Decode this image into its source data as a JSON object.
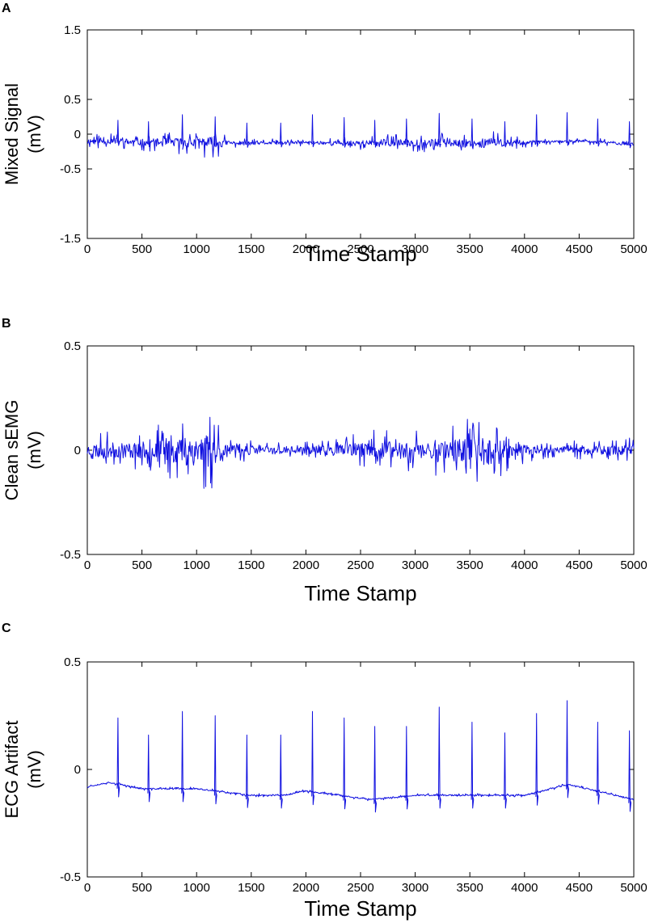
{
  "chart_data": [
    {
      "panel_label": "A",
      "type": "line",
      "xlabel": "Time Stamp",
      "ylabel": [
        "Mixed Signal",
        "(mV)"
      ],
      "xlim": [
        0,
        5000
      ],
      "ylim": [
        -1.5,
        1.5
      ],
      "xticks": [
        "0",
        "500",
        "1000",
        "1500",
        "2000",
        "2500",
        "3000",
        "3500",
        "4000",
        "4500",
        "5000"
      ],
      "yticks": [
        "1.5",
        "0.5",
        "0",
        "-0.5",
        "-1.5"
      ],
      "ytick_values": [
        1.5,
        0.5,
        0,
        -0.5,
        -1.5
      ],
      "series": [
        {
          "color": "#1010e0",
          "baseline_points": [
            [
              0,
              -0.1
            ],
            [
              250,
              -0.1
            ],
            [
              500,
              -0.12
            ],
            [
              1000,
              -0.12
            ],
            [
              1500,
              -0.13
            ],
            [
              2000,
              -0.12
            ],
            [
              2500,
              -0.13
            ],
            [
              3000,
              -0.12
            ],
            [
              3500,
              -0.13
            ],
            [
              4000,
              -0.12
            ],
            [
              4500,
              -0.1
            ],
            [
              5000,
              -0.14
            ]
          ],
          "spike_peaks": [
            [
              280,
              0.2
            ],
            [
              560,
              0.18
            ],
            [
              870,
              0.28
            ],
            [
              1170,
              0.25
            ],
            [
              1460,
              0.16
            ],
            [
              1770,
              0.16
            ],
            [
              2060,
              0.28
            ],
            [
              2350,
              0.24
            ],
            [
              2630,
              0.2
            ],
            [
              2920,
              0.22
            ],
            [
              3220,
              0.3
            ],
            [
              3520,
              0.22
            ],
            [
              3820,
              0.18
            ],
            [
              4110,
              0.28
            ],
            [
              4390,
              0.31
            ],
            [
              4670,
              0.22
            ],
            [
              4960,
              0.18
            ]
          ],
          "noise_envelope": [
            [
              0,
              0.1
            ],
            [
              500,
              0.12
            ],
            [
              800,
              0.16
            ],
            [
              1000,
              0.22
            ],
            [
              1200,
              0.2
            ],
            [
              1300,
              0.07
            ],
            [
              2000,
              0.05
            ],
            [
              2500,
              0.1
            ],
            [
              3000,
              0.14
            ],
            [
              3400,
              0.15
            ],
            [
              3700,
              0.17
            ],
            [
              3900,
              0.1
            ],
            [
              4200,
              0.04
            ],
            [
              5000,
              0.06
            ]
          ]
        }
      ]
    },
    {
      "panel_label": "B",
      "type": "line",
      "xlabel": "Time Stamp",
      "ylabel": [
        "Clean sEMG",
        "(mV)"
      ],
      "xlim": [
        0,
        5000
      ],
      "ylim": [
        -0.5,
        0.5
      ],
      "xticks": [
        "0",
        "500",
        "1000",
        "1500",
        "2000",
        "2500",
        "3000",
        "3500",
        "4000",
        "4500",
        "5000"
      ],
      "yticks": [
        "0.5",
        "0",
        "-0.5"
      ],
      "ytick_values": [
        0.5,
        0,
        -0.5
      ],
      "series": [
        {
          "color": "#1010e0",
          "baseline_points": [
            [
              0,
              0
            ],
            [
              5000,
              0
            ]
          ],
          "spike_peaks": [],
          "noise_envelope": [
            [
              0,
              0.08
            ],
            [
              500,
              0.1
            ],
            [
              800,
              0.15
            ],
            [
              1050,
              0.22
            ],
            [
              1200,
              0.18
            ],
            [
              1300,
              0.06
            ],
            [
              2000,
              0.04
            ],
            [
              2500,
              0.09
            ],
            [
              3000,
              0.12
            ],
            [
              3400,
              0.14
            ],
            [
              3650,
              0.18
            ],
            [
              3900,
              0.08
            ],
            [
              4200,
              0.04
            ],
            [
              5000,
              0.06
            ]
          ]
        }
      ]
    },
    {
      "panel_label": "C",
      "type": "line",
      "xlabel": "Time Stamp",
      "ylabel": [
        "ECG Artifact",
        "(mV)"
      ],
      "xlim": [
        0,
        5000
      ],
      "ylim": [
        -0.5,
        0.5
      ],
      "xticks": [
        "0",
        "500",
        "1000",
        "1500",
        "2000",
        "2500",
        "3000",
        "3500",
        "4000",
        "4500",
        "5000"
      ],
      "yticks": [
        "0.5",
        "0",
        "-0.5"
      ],
      "ytick_values": [
        0.5,
        0,
        -0.5
      ],
      "series": [
        {
          "color": "#1010e0",
          "baseline_points": [
            [
              0,
              -0.08
            ],
            [
              200,
              -0.06
            ],
            [
              500,
              -0.09
            ],
            [
              1000,
              -0.09
            ],
            [
              1500,
              -0.12
            ],
            [
              1800,
              -0.12
            ],
            [
              2000,
              -0.1
            ],
            [
              2600,
              -0.14
            ],
            [
              3000,
              -0.12
            ],
            [
              3500,
              -0.12
            ],
            [
              4000,
              -0.12
            ],
            [
              4400,
              -0.07
            ],
            [
              5000,
              -0.14
            ]
          ],
          "spike_peaks": [
            [
              280,
              0.24
            ],
            [
              560,
              0.16
            ],
            [
              870,
              0.27
            ],
            [
              1170,
              0.25
            ],
            [
              1460,
              0.16
            ],
            [
              1770,
              0.16
            ],
            [
              2060,
              0.27
            ],
            [
              2350,
              0.24
            ],
            [
              2630,
              0.2
            ],
            [
              2920,
              0.2
            ],
            [
              3220,
              0.29
            ],
            [
              3520,
              0.22
            ],
            [
              3820,
              0.17
            ],
            [
              4110,
              0.26
            ],
            [
              4390,
              0.32
            ],
            [
              4670,
              0.22
            ],
            [
              4960,
              0.18
            ]
          ],
          "noise_envelope": [
            [
              0,
              0.008
            ],
            [
              5000,
              0.008
            ]
          ]
        }
      ]
    }
  ]
}
